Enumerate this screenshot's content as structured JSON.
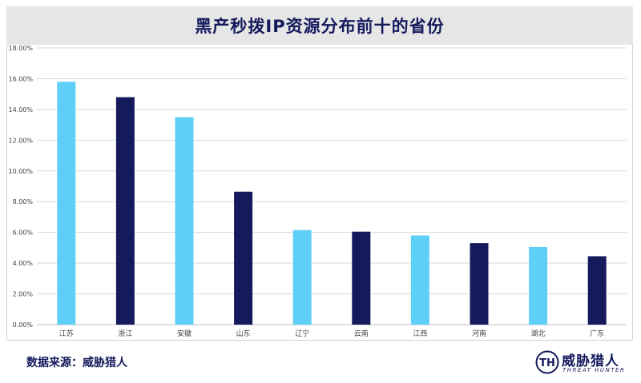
{
  "chart_data": {
    "type": "bar",
    "title": "黑产秒拨IP资源分布前十的省份",
    "xlabel": "",
    "ylabel": "",
    "categories": [
      "江苏",
      "浙江",
      "安徽",
      "山东",
      "辽宁",
      "云南",
      "江西",
      "河南",
      "湖北",
      "广东"
    ],
    "values": [
      15.8,
      14.8,
      13.5,
      8.65,
      6.15,
      6.05,
      5.8,
      5.3,
      5.05,
      4.45
    ],
    "ylim": [
      0,
      18
    ],
    "yticks": [
      "0.00%",
      "2.00%",
      "4.00%",
      "6.00%",
      "8.00%",
      "10.00%",
      "12.00%",
      "14.00%",
      "16.00%",
      "18.00%"
    ],
    "grid": true,
    "legend": "none",
    "colors": {
      "light": "#5ed0f7",
      "dark": "#141a5c",
      "grid": "#d9d9d9"
    }
  },
  "footer": {
    "source": "数据来源：威胁猎人",
    "logo_cn": "威胁猎人",
    "logo_en": "THREAT HUNTER",
    "logo_mark": "TH"
  }
}
